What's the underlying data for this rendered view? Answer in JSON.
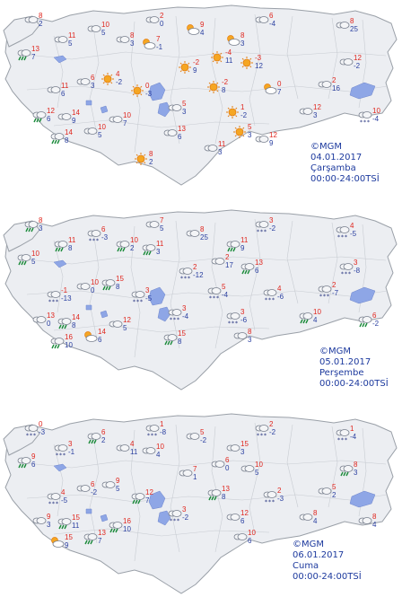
{
  "colors": {
    "land": "#eceef2",
    "land_stroke": "#9aa0a8",
    "province_lines": "#c8ccd2",
    "lake": "#8ea6e6",
    "sea": "#ffffff",
    "temp_max": "#e0261e",
    "temp_min": "#2a3fa0",
    "caption": "#1d3a9e"
  },
  "maps": [
    {
      "caption": {
        "org": "©MGM",
        "date": "04.01.2017",
        "day": "Çarşamba",
        "time": "00:00-24:00TSİ"
      },
      "stations": [
        {
          "icon": "cloud",
          "hi": "8",
          "lo": "2"
        },
        {
          "icon": "cloud",
          "hi": "11",
          "lo": "5"
        },
        {
          "icon": "rain",
          "hi": "13",
          "lo": "7"
        },
        {
          "icon": "cloud",
          "hi": "10",
          "lo": "5"
        },
        {
          "icon": "cloud",
          "hi": "8",
          "lo": "3"
        },
        {
          "icon": "sun-cloud",
          "hi": "7",
          "lo": "-1"
        },
        {
          "icon": "cloud",
          "hi": "2",
          "lo": "0"
        },
        {
          "icon": "sun-cloud",
          "hi": "9",
          "lo": "4"
        },
        {
          "icon": "sun-cloud",
          "hi": "8",
          "lo": "3"
        },
        {
          "icon": "cloud",
          "hi": "6",
          "lo": "-4"
        },
        {
          "icon": "cloud",
          "hi": "8",
          "lo": "25"
        },
        {
          "icon": "cloud",
          "hi": "12",
          "lo": "-2"
        },
        {
          "icon": "sun",
          "hi": "-2",
          "lo": "9"
        },
        {
          "icon": "sun",
          "hi": "-4",
          "lo": "11"
        },
        {
          "icon": "sun",
          "hi": "-3",
          "lo": "12"
        },
        {
          "icon": "sun",
          "hi": "-2",
          "lo": "8"
        },
        {
          "icon": "sun-cloud",
          "hi": "0",
          "lo": "7"
        },
        {
          "icon": "cloud",
          "hi": "2",
          "lo": "16"
        },
        {
          "icon": "cloud",
          "hi": "11",
          "lo": "6"
        },
        {
          "icon": "cloud",
          "hi": "6",
          "lo": "3"
        },
        {
          "icon": "sun",
          "hi": "4",
          "lo": "-2"
        },
        {
          "icon": "sun",
          "hi": "0",
          "lo": "-3"
        },
        {
          "icon": "cloud",
          "hi": "5",
          "lo": "3"
        },
        {
          "icon": "snow",
          "hi": "10",
          "lo": "-4"
        },
        {
          "icon": "rain",
          "hi": "12",
          "lo": "6"
        },
        {
          "icon": "cloud",
          "hi": "14",
          "lo": "9"
        },
        {
          "icon": "cloud",
          "hi": "10",
          "lo": "7"
        },
        {
          "icon": "sun",
          "hi": "1",
          "lo": "-2"
        },
        {
          "icon": "cloud",
          "hi": "12",
          "lo": "3"
        },
        {
          "icon": "sun",
          "hi": "5",
          "lo": "3"
        },
        {
          "icon": "rain",
          "hi": "14",
          "lo": "8"
        },
        {
          "icon": "cloud",
          "hi": "10",
          "lo": "5"
        },
        {
          "icon": "cloud",
          "hi": "13",
          "lo": "6"
        },
        {
          "icon": "cloud",
          "hi": "11",
          "lo": "3"
        },
        {
          "icon": "cloud",
          "hi": "12",
          "lo": "9"
        },
        {
          "icon": "sun",
          "hi": "8",
          "lo": "2"
        }
      ]
    },
    {
      "caption": {
        "org": "©MGM",
        "date": "05.01.2017",
        "day": "Perşembe",
        "time": "00:00-24:00TSİ"
      },
      "stations": [
        {
          "icon": "rain",
          "hi": "8",
          "lo": "3"
        },
        {
          "icon": "rain",
          "hi": "11",
          "lo": "8"
        },
        {
          "icon": "rain",
          "hi": "10",
          "lo": "5"
        },
        {
          "icon": "snow",
          "hi": "6",
          "lo": "-3"
        },
        {
          "icon": "rain",
          "hi": "10",
          "lo": "2"
        },
        {
          "icon": "rain",
          "hi": "11",
          "lo": "3"
        },
        {
          "icon": "cloud",
          "hi": "7",
          "lo": "5"
        },
        {
          "icon": "cloud",
          "hi": "8",
          "lo": "25"
        },
        {
          "icon": "rain",
          "hi": "11",
          "lo": "9"
        },
        {
          "icon": "snow",
          "hi": "3",
          "lo": "-2"
        },
        {
          "icon": "snow",
          "hi": "4",
          "lo": "-5"
        },
        {
          "icon": "snow",
          "hi": "3",
          "lo": "-8"
        },
        {
          "icon": "snow",
          "hi": "2",
          "lo": "-12"
        },
        {
          "icon": "cloud",
          "hi": "2",
          "lo": "17"
        },
        {
          "icon": "rain",
          "hi": "13",
          "lo": "6"
        },
        {
          "icon": "snow",
          "hi": "5",
          "lo": "-4"
        },
        {
          "icon": "snow",
          "hi": "4",
          "lo": "-6"
        },
        {
          "icon": "snow",
          "hi": "2",
          "lo": "-7"
        },
        {
          "icon": "snow",
          "hi": "-1",
          "lo": "-13"
        },
        {
          "icon": "cloud",
          "hi": "10",
          "lo": "0"
        },
        {
          "icon": "rain",
          "hi": "15",
          "lo": "8"
        },
        {
          "icon": "snow",
          "hi": "3",
          "lo": "-5"
        },
        {
          "icon": "snow",
          "hi": "3",
          "lo": "-4"
        },
        {
          "icon": "rain",
          "hi": "6",
          "lo": "-2"
        },
        {
          "icon": "cloud",
          "hi": "13",
          "lo": "0"
        },
        {
          "icon": "rain",
          "hi": "14",
          "lo": "8"
        },
        {
          "icon": "cloud",
          "hi": "12",
          "lo": "5"
        },
        {
          "icon": "snow",
          "hi": "3",
          "lo": "-6"
        },
        {
          "icon": "rain",
          "hi": "10",
          "lo": "4"
        },
        {
          "icon": "cloud",
          "hi": "8",
          "lo": "3"
        },
        {
          "icon": "rain",
          "hi": "16",
          "lo": "10"
        },
        {
          "icon": "sun-cloud",
          "hi": "14",
          "lo": "6"
        },
        {
          "icon": "rain",
          "hi": "15",
          "lo": "8"
        }
      ]
    },
    {
      "caption": {
        "org": "©MGM",
        "date": "06.01.2017",
        "day": "Cuma",
        "time": "00:00-24:00TSİ"
      },
      "stations": [
        {
          "icon": "snow",
          "hi": "0",
          "lo": "-3"
        },
        {
          "icon": "snow",
          "hi": "3",
          "lo": "-1"
        },
        {
          "icon": "rain",
          "hi": "9",
          "lo": "6"
        },
        {
          "icon": "rain",
          "hi": "6",
          "lo": "2"
        },
        {
          "icon": "cloud",
          "hi": "4",
          "lo": "11"
        },
        {
          "icon": "cloud",
          "hi": "10",
          "lo": "4"
        },
        {
          "icon": "snow",
          "hi": "1",
          "lo": "-8"
        },
        {
          "icon": "cloud",
          "hi": "5",
          "lo": "-2"
        },
        {
          "icon": "cloud",
          "hi": "15",
          "lo": "3"
        },
        {
          "icon": "snow",
          "hi": "2",
          "lo": "-2"
        },
        {
          "icon": "snow",
          "hi": "1",
          "lo": "-4"
        },
        {
          "icon": "rain",
          "hi": "8",
          "lo": "3"
        },
        {
          "icon": "cloud",
          "hi": "7",
          "lo": "1"
        },
        {
          "icon": "cloud",
          "hi": "6",
          "lo": "0"
        },
        {
          "icon": "cloud",
          "hi": "10",
          "lo": "5"
        },
        {
          "icon": "rain",
          "hi": "13",
          "lo": "8"
        },
        {
          "icon": "snow",
          "hi": "2",
          "lo": "-3"
        },
        {
          "icon": "cloud",
          "hi": "5",
          "lo": "2"
        },
        {
          "icon": "snow",
          "hi": "4",
          "lo": "-5"
        },
        {
          "icon": "cloud",
          "hi": "6",
          "lo": "-2"
        },
        {
          "icon": "cloud",
          "hi": "9",
          "lo": "5"
        },
        {
          "icon": "rain",
          "hi": "12",
          "lo": "7"
        },
        {
          "icon": "snow",
          "hi": "3",
          "lo": "-2"
        },
        {
          "icon": "cloud",
          "hi": "8",
          "lo": "4"
        },
        {
          "icon": "cloud",
          "hi": "9",
          "lo": "3"
        },
        {
          "icon": "rain",
          "hi": "15",
          "lo": "11"
        },
        {
          "icon": "rain",
          "hi": "16",
          "lo": "10"
        },
        {
          "icon": "cloud",
          "hi": "12",
          "lo": "6"
        },
        {
          "icon": "cloud",
          "hi": "8",
          "lo": "4"
        },
        {
          "icon": "cloud",
          "hi": "10",
          "lo": "6"
        },
        {
          "icon": "sun-cloud",
          "hi": "15",
          "lo": "9"
        },
        {
          "icon": "rain",
          "hi": "13",
          "lo": "7"
        }
      ]
    }
  ]
}
